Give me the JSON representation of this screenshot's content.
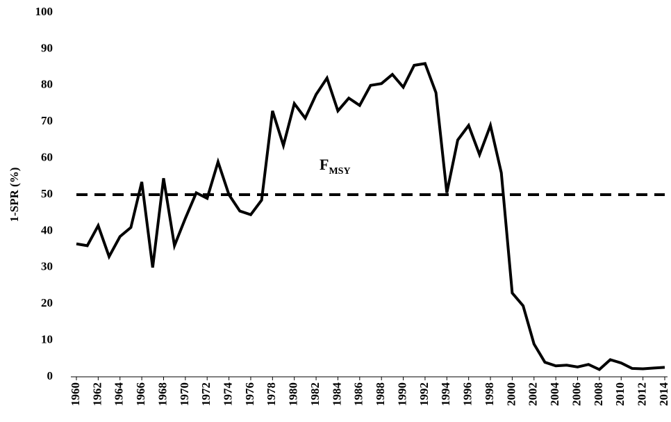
{
  "chart_data": {
    "type": "line",
    "y_label": "1-SPR (%)",
    "x": [
      1960,
      1961,
      1962,
      1963,
      1964,
      1965,
      1966,
      1967,
      1968,
      1969,
      1970,
      1971,
      1972,
      1973,
      1974,
      1975,
      1976,
      1977,
      1978,
      1979,
      1980,
      1981,
      1982,
      1983,
      1984,
      1985,
      1986,
      1987,
      1988,
      1989,
      1990,
      1991,
      1992,
      1993,
      1994,
      1995,
      1996,
      1997,
      1998,
      1999,
      2000,
      2001,
      2002,
      2003,
      2004,
      2005,
      2006,
      2007,
      2008,
      2009,
      2010,
      2011,
      2012,
      2013,
      2014
    ],
    "series": [
      {
        "color": "#000000",
        "values": [
          36.5,
          36,
          41.5,
          33,
          38.5,
          41,
          53.5,
          30,
          54.5,
          36,
          43.5,
          50.5,
          49,
          59,
          50,
          45.5,
          44.5,
          48.5,
          73,
          63.5,
          75,
          71,
          77.5,
          82,
          73,
          76.5,
          74.5,
          80,
          80.5,
          83,
          79.5,
          85.5,
          86,
          78,
          50.5,
          65,
          69,
          61,
          69,
          56,
          23,
          19.5,
          9,
          4,
          3,
          3.2,
          2.7,
          3.4,
          2,
          4.7,
          3.8,
          2.3,
          2.2,
          2.4,
          2.6
        ]
      }
    ],
    "reference_line": {
      "value": 50,
      "label": "F",
      "label_subscript": "MSY",
      "style": "dashed"
    },
    "xlim": [
      1960,
      2014
    ],
    "xticks": [
      1960,
      1962,
      1964,
      1966,
      1968,
      1970,
      1972,
      1974,
      1976,
      1978,
      1980,
      1982,
      1984,
      1986,
      1988,
      1990,
      1992,
      1994,
      1996,
      1998,
      2000,
      2002,
      2004,
      2006,
      2008,
      2010,
      2012,
      2014
    ],
    "ylim": [
      0,
      100
    ],
    "yticks": [
      0,
      10,
      20,
      30,
      40,
      50,
      60,
      70,
      80,
      90,
      100
    ],
    "grid": false
  }
}
